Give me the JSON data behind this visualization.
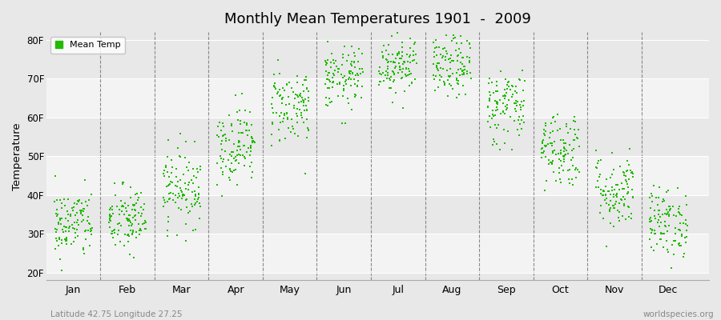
{
  "title": "Monthly Mean Temperatures 1901  -  2009",
  "ylabel": "Temperature",
  "xlabel_labels": [
    "Jan",
    "Feb",
    "Mar",
    "Apr",
    "May",
    "Jun",
    "Jul",
    "Aug",
    "Sep",
    "Oct",
    "Nov",
    "Dec"
  ],
  "ytick_labels": [
    "20F",
    "30F",
    "40F",
    "50F",
    "60F",
    "70F",
    "80F"
  ],
  "ytick_values": [
    20,
    30,
    40,
    50,
    60,
    70,
    80
  ],
  "ylim": [
    18,
    82
  ],
  "xlim": [
    -0.5,
    11.75
  ],
  "legend_label": "Mean Temp",
  "dot_color": "#22bb00",
  "dot_size": 2.5,
  "background_color": "#e8e8e8",
  "plot_bg_color": "#e8e8e8",
  "subtitle_left": "Latitude 42.75 Longitude 27.25",
  "subtitle_right": "worldspecies.org",
  "monthly_means": [
    32.5,
    33.5,
    42,
    53,
    63,
    70,
    74,
    73,
    63,
    52,
    41,
    33
  ],
  "monthly_stds": [
    4.5,
    4.5,
    5,
    5,
    5,
    4,
    4,
    4,
    5,
    5,
    5,
    4.5
  ],
  "n_years": 109,
  "seed": 42
}
